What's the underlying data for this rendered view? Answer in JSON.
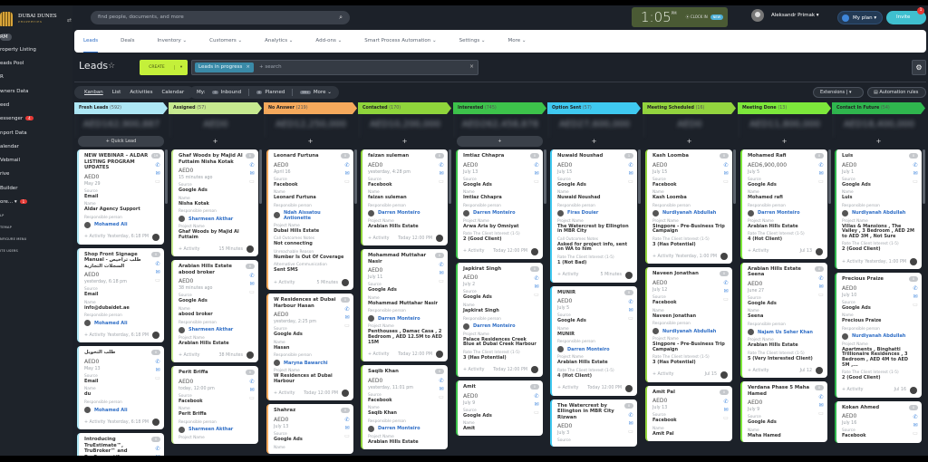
{
  "brand": {
    "name": "DUBAI DUNES",
    "sub": "PROPERTIES"
  },
  "search": {
    "placeholder": "find people, documents, and more"
  },
  "clock": {
    "time": "1:05",
    "ampm": "PM",
    "clock_in": "CLOCK IN",
    "new_badge": "NEW"
  },
  "user": {
    "name": "Aleksandr Primak ▾"
  },
  "myplan": "My plan ▾",
  "invite": {
    "label": "Invite",
    "badge": "1"
  },
  "sidebar": {
    "items": [
      {
        "label": "RM"
      },
      {
        "label": "roperty Listing"
      },
      {
        "label": "eads Pool"
      },
      {
        "label": "R"
      },
      {
        "label": "wners Data"
      },
      {
        "label": "eed"
      },
      {
        "label": "essenger",
        "badge": "4"
      },
      {
        "label": "nport Data"
      },
      {
        "label": "alendar"
      },
      {
        "label": "Vebmail"
      },
      {
        "label": "rive"
      },
      {
        "label": "Builder"
      },
      {
        "label": "ore... ▾",
        "badge": "1"
      }
    ],
    "footer": [
      "LP",
      "TEMAP",
      "NFIGURE MENU",
      "ITE USERS"
    ]
  },
  "nav": [
    "Leads",
    "Deals",
    "Inventory ⌄",
    "Customers ⌄",
    "Analytics ⌄",
    "Add-ons ⌄",
    "Smart Process Automation ⌄",
    "Settings ⌄",
    "More ⌄"
  ],
  "page": {
    "title": "Leads",
    "create": "CREATE",
    "filter_chip": "Leads in progress",
    "filter_search": "+ search"
  },
  "views": [
    "Kanban",
    "List",
    "Activities",
    "Calendar"
  ],
  "my": {
    "label": "My:",
    "inbound_count": "0",
    "inbound": "Inbound",
    "planned_count": "0",
    "planned": "Planned",
    "more_count": "99+",
    "more": "More ⌄"
  },
  "extensions": "Extensions  |  ▾",
  "automation": "▤ Automation rules",
  "quick_lead": "+ Quick Lead",
  "labels": {
    "activity": "+ Activity",
    "responsible": "Responsible person"
  },
  "columns": [
    {
      "name": "Fresh Leads",
      "count": "(592)",
      "color": "#aee7f5",
      "total": "AED162,900,887",
      "cards": [
        {
          "title": "NEW WEBINAR – ALDAR LISTING PROGRAM UPDATES",
          "badge": "19",
          "amount": "AED0",
          "date": "May 29",
          "fields": [
            [
              "Source",
              "Email"
            ],
            [
              "Name",
              "Aldar Agency Support"
            ]
          ],
          "responsible": "Mohamed Ali",
          "extra": [],
          "time": "Yesterday, 6:18 PM"
        },
        {
          "title": "Shop Front Signage Manual - طلب تراخيص السجلات التجارية",
          "badge": "0",
          "amount": "AED0",
          "date": "yesterday, 6:18 pm",
          "fields": [
            [
              "Source",
              "Email"
            ],
            [
              "Name",
              "info@dubaidet.ae"
            ]
          ],
          "responsible": "Mohamed Ali",
          "extra": [],
          "time": "Yesterday, 6:18 PM"
        },
        {
          "title": "طلب التحويل",
          "badge": "0",
          "amount": "AED0",
          "date": "May 13",
          "fields": [
            [
              "Source",
              "Email"
            ],
            [
              "Name",
              "du"
            ]
          ],
          "responsible": "Mohamed Ali",
          "extra": [],
          "time": "Yesterday, 6:18 PM"
        },
        {
          "title": "Introducing TruEstimate™, TruBroker™ and ProConnect™",
          "badge": "0",
          "amount": "AED0",
          "date": "",
          "fields": [],
          "responsible": "",
          "extra": [],
          "time": ""
        }
      ]
    },
    {
      "name": "Assigned",
      "count": "(57)",
      "color": "#c6e98f",
      "total": "AED0",
      "cards": [
        {
          "title": "Ghaf Woods by Majid Al Futtaim Nisha Kotak",
          "badge": "0",
          "amount": "AED0",
          "date": "15 minutes ago",
          "fields": [
            [
              "Source",
              "Google Ads"
            ],
            [
              "Name",
              "Nisha Kotak"
            ]
          ],
          "responsible": "Sharmeen Akthar",
          "extra": [
            [
              "Project Name",
              "Ghaf Woods by Majid Al Futtaim"
            ]
          ],
          "time": "15 Minutes"
        },
        {
          "title": "Arabian Hills Estate abood broker",
          "badge": "0",
          "amount": "AED0",
          "date": "38 minutes ago",
          "fields": [
            [
              "Source",
              "Google Ads"
            ],
            [
              "Name",
              "abood broker"
            ]
          ],
          "responsible": "Sharmeen Akthar",
          "extra": [
            [
              "Project Name",
              "Arabian Hills Estate"
            ]
          ],
          "time": "38 Minutes"
        },
        {
          "title": "Perit Briffa",
          "badge": "0",
          "amount": "AED0",
          "date": "today, 12:00 pm",
          "fields": [
            [
              "Source",
              "Facebook"
            ],
            [
              "Name",
              "Perit Briffa"
            ]
          ],
          "responsible": "Sharmeen Akthar",
          "extra": [
            [
              "Project Name",
              ""
            ]
          ],
          "time": ""
        }
      ]
    },
    {
      "name": "No Answer",
      "count": "(219)",
      "color": "#f5a95c",
      "total": "AED12,250,000",
      "cards": [
        {
          "title": "Leonard Furtuna",
          "badge": "0",
          "amount": "AED0",
          "date": "April 16",
          "fields": [
            [
              "Source",
              "Facebook"
            ],
            [
              "Name",
              "Leonard Furtuna"
            ]
          ],
          "responsible": "Ndah Aissatou Antionette",
          "extra": [
            [
              "Project Name",
              "Dubai Hills Estate"
            ],
            [
              "Call Outcomes Notes",
              "Not connecting"
            ],
            [
              "Unreachable Reason",
              "Number Is Out Of Coverage"
            ],
            [
              "Alternative Communication",
              "Sent SMS"
            ]
          ],
          "time": "5 Minutes"
        },
        {
          "title": "W Residences at Dubai Harbour Hasan",
          "badge": "0",
          "amount": "AED0",
          "date": "yesterday, 2:25 pm",
          "fields": [
            [
              "Source",
              "Google Ads"
            ],
            [
              "Name",
              "Hasan"
            ]
          ],
          "responsible": "Maryna Bawarchi",
          "extra": [
            [
              "Project Name",
              "W Residences at Dubai Harbour"
            ]
          ],
          "time": "Today 12:00 PM"
        },
        {
          "title": "Shahraz",
          "badge": "0",
          "amount": "AED0",
          "date": "July 13",
          "fields": [
            [
              "Source",
              "Google Ads"
            ],
            [
              "Name",
              ""
            ]
          ],
          "responsible": "",
          "extra": [],
          "time": ""
        }
      ]
    },
    {
      "name": "Contacted",
      "count": "(170)",
      "color": "#8fd53b",
      "total": "AED10,200,000",
      "cards": [
        {
          "title": "faizan suleman",
          "badge": "0",
          "amount": "AED0",
          "date": "yesterday, 4:28 pm",
          "fields": [
            [
              "Source",
              "Facebook"
            ],
            [
              "Name",
              "faizan suleman"
            ]
          ],
          "responsible": "Darren Monteiro",
          "extra": [
            [
              "Project Name",
              "Arabian Hills Estate"
            ]
          ],
          "time": "Today 12:00 PM"
        },
        {
          "title": "Mohammad Muttahar Nasir",
          "badge": "0",
          "amount": "AED0",
          "date": "July 11",
          "fields": [
            [
              "Source",
              "Google Ads"
            ],
            [
              "Name",
              "Mohammad Muttahar Nasir"
            ]
          ],
          "responsible": "Darren Monteiro",
          "extra": [
            [
              "Project Name",
              "Penthouses , Damac Casa , 2 Bedroom , AED 12.5M to AED 15M"
            ]
          ],
          "time": "Today 12:00 PM"
        },
        {
          "title": "Saqib Khan",
          "badge": "0",
          "amount": "AED0",
          "date": "yesterday, 11:01 pm",
          "fields": [
            [
              "Source",
              "Facebook"
            ],
            [
              "Name",
              "Saqib Khan"
            ]
          ],
          "responsible": "Darren Monteiro",
          "extra": [
            [
              "Project Name",
              "Arabian Hills Estate"
            ]
          ],
          "time": ""
        }
      ]
    },
    {
      "name": "Interested",
      "count": "(745)",
      "color": "#3dc34b",
      "total": "AED262,458,878",
      "cards": [
        {
          "title": "Imtiaz Chhapra",
          "badge": "0",
          "amount": "AED0",
          "date": "July 13",
          "fields": [
            [
              "Source",
              "Google Ads"
            ],
            [
              "Name",
              "Imtiaz Chhapra"
            ]
          ],
          "responsible": "Darren Monteiro",
          "extra": [
            [
              "Project Name",
              "Arwa Aria by Omniyat"
            ],
            [
              "Rate The Client Interest (1-5)",
              "2 (Good Client)"
            ]
          ],
          "time": "Today 12:00 PM"
        },
        {
          "title": "Japkirat Singh",
          "badge": "0",
          "amount": "AED0",
          "date": "July 2",
          "fields": [
            [
              "Source",
              "Google Ads"
            ],
            [
              "Name",
              "Japkirat Singh"
            ]
          ],
          "responsible": "Darren Monteiro",
          "extra": [
            [
              "Project Name",
              "Palace Residences Creek Blue at Dubai Creek Harbour"
            ],
            [
              "Rate The Client Interest (1-5)",
              "3 (Has Potential)"
            ]
          ],
          "time": "Today 12:00 PM"
        },
        {
          "title": "Amit",
          "badge": "0",
          "amount": "AED0",
          "date": "July 9",
          "fields": [
            [
              "Source",
              "Google Ads"
            ],
            [
              "Name",
              "Amit"
            ]
          ],
          "responsible": "",
          "extra": [],
          "time": ""
        }
      ]
    },
    {
      "name": "Option Sent",
      "count": "(57)",
      "color": "#3fc9f0",
      "total": "AED27,600,000",
      "cards": [
        {
          "title": "Nuwaid Noushad",
          "badge": "1",
          "amount": "AED0",
          "date": "July 15",
          "fields": [
            [
              "Source",
              "Google Ads"
            ],
            [
              "Name",
              "Nuwaid Noushad"
            ]
          ],
          "responsible": "Firas Douier",
          "extra": [
            [
              "Project Name",
              "The Watercrest by Ellington in MBR City"
            ],
            [
              "Call Outcomes Notes",
              "Asked for project info, sent on WA to him"
            ],
            [
              "Rate The Client Interest (1-5)",
              "1 (Not Bad)"
            ]
          ],
          "time": "5 Minutes"
        },
        {
          "title": "MUNIR",
          "badge": "0",
          "amount": "AED0",
          "date": "July 5",
          "fields": [
            [
              "Source",
              "Google Ads"
            ],
            [
              "Name",
              "MUNIR"
            ]
          ],
          "responsible": "Darren Monteiro",
          "extra": [
            [
              "Project Name",
              "Arabian Hills Estate"
            ],
            [
              "Rate The Client Interest (1-5)",
              "4 (Hot Client)"
            ]
          ],
          "time": "Today 12:00 PM"
        },
        {
          "title": "The Watercrest by Ellington in MBR City Rizwan",
          "badge": "0",
          "amount": "AED0",
          "date": "July 3",
          "fields": [
            [
              "Source",
              ""
            ]
          ],
          "responsible": "",
          "extra": [],
          "time": ""
        }
      ]
    },
    {
      "name": "Meeting Scheduled",
      "count": "(16)",
      "color": "#93d43e",
      "total": "AED0",
      "cards": [
        {
          "title": "Kash Loomba",
          "badge": "0",
          "amount": "AED0",
          "date": "July 15",
          "fields": [
            [
              "Source",
              "Facebook"
            ],
            [
              "Name",
              "Kash Loomba"
            ]
          ],
          "responsible": "Nurdiyanah Abdullah",
          "extra": [
            [
              "Project Name",
              "Singpore - Pre-Business Trip Campaign"
            ],
            [
              "Rate The Client Interest (1-5)",
              "3 (Has Potential)"
            ]
          ],
          "time": "Yesterday, 1:00 PM"
        },
        {
          "title": "Naveen Jonathan",
          "badge": "0",
          "amount": "AED0",
          "date": "July 12",
          "fields": [
            [
              "Source",
              "Facebook"
            ],
            [
              "Name",
              "Naveen Jonathan"
            ]
          ],
          "responsible": "Nurdiyanah Abdullah",
          "extra": [
            [
              "Project Name",
              "Singpore - Pre-Business Trip Campaign"
            ],
            [
              "Rate The Client Interest (1-5)",
              "3 (Has Potential)"
            ]
          ],
          "time": "Jul 15"
        },
        {
          "title": "Amit Pal",
          "badge": "0",
          "amount": "AED0",
          "date": "July 13",
          "fields": [
            [
              "Source",
              "Facebook"
            ],
            [
              "Name",
              "Amit Pal"
            ]
          ],
          "responsible": "",
          "extra": [],
          "time": ""
        }
      ]
    },
    {
      "name": "Meeting Done",
      "count": "(13)",
      "color": "#7de83b",
      "total": "AED11,800,000",
      "cards": [
        {
          "title": "Mohamed Rafi",
          "badge": "0",
          "amount": "AED6,900,000",
          "date": "July 5",
          "fields": [
            [
              "Source",
              "Google Ads"
            ],
            [
              "Name",
              "Mohamed rafi"
            ]
          ],
          "responsible": "Darren Monteiro",
          "extra": [
            [
              "Project Name",
              "Arabian Hills Estate"
            ],
            [
              "Rate The Client Interest (1-5)",
              "4 (Hot Client)"
            ]
          ],
          "time": "Jul 13"
        },
        {
          "title": "Arabian Hills Estate Seena",
          "badge": "0",
          "amount": "AED0",
          "date": "June 27",
          "fields": [
            [
              "Source",
              "Google Ads"
            ],
            [
              "Name",
              "Seena"
            ]
          ],
          "responsible": "Najam Us Seher Khan",
          "extra": [
            [
              "Project Name",
              "Arabian Hills Estate"
            ],
            [
              "Rate The Client Interest (1-5)",
              "5 (Very Interested Client)"
            ]
          ],
          "time": "Jul 12"
        },
        {
          "title": "Verdana Phase 5 Maha Hamed",
          "badge": "0",
          "amount": "AED0",
          "date": "July 9",
          "fields": [
            [
              "Source",
              "Google Ads"
            ],
            [
              "Name",
              "Maha Hamed"
            ]
          ],
          "responsible": "",
          "extra": [],
          "time": ""
        }
      ]
    },
    {
      "name": "Contact In Future",
      "count": "(54)",
      "color": "#2fb64e",
      "total": "AED18,400,000",
      "cards": [
        {
          "title": "Luis",
          "badge": "0",
          "amount": "AED0",
          "date": "July 1",
          "fields": [
            [
              "Source",
              "Google Ads"
            ],
            [
              "Name",
              "Luis"
            ]
          ],
          "responsible": "Nurdiyanah Abdullah",
          "extra": [
            [
              "Project Name",
              "Villas & Mansions , The Valley , 3 Bedroom , AED 2M to AED 3M , Not Sure"
            ],
            [
              "Rate The Client Interest (1-5)",
              "2 (Good Client)"
            ]
          ],
          "time": "Yesterday, 1:00 PM"
        },
        {
          "title": "Precious Praize",
          "badge": "0",
          "amount": "AED0",
          "date": "July 10",
          "fields": [
            [
              "Source",
              "Google Ads"
            ],
            [
              "Name",
              "Precious Praize"
            ]
          ],
          "responsible": "Nurdiyanah Abdullah",
          "extra": [
            [
              "Project Name",
              "Apartments , Binghatti Trillionaire Residences , 3 Bedroom , AED 4M to AED 5M ,..."
            ],
            [
              "Rate The Client Interest (1-5)",
              "2 (Good Client)"
            ]
          ],
          "time": "Jul 16"
        },
        {
          "title": "Kokan Ahmed",
          "badge": "0",
          "amount": "AED0",
          "date": "July 16",
          "fields": [
            [
              "Source",
              "Facebook"
            ]
          ],
          "responsible": "",
          "extra": [],
          "time": ""
        }
      ]
    }
  ]
}
